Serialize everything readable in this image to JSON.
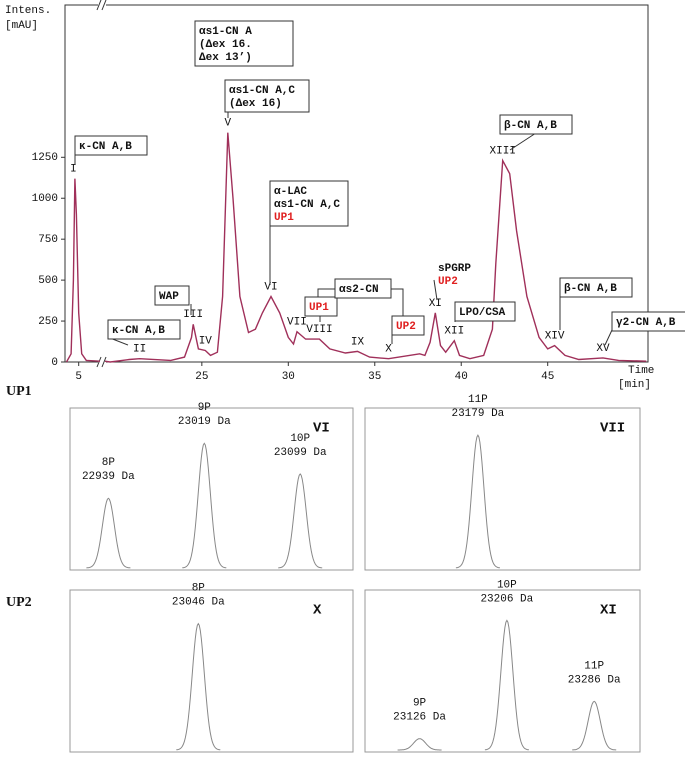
{
  "rows": [
    "UP1",
    "UP2"
  ],
  "chart_data": [
    {
      "type": "line",
      "y_label": "Intens.",
      "y_unit": "[mAU]",
      "x_label": "Time",
      "x_unit": "[min]",
      "xlim": [
        4.1,
        50.8
      ],
      "x_break": [
        6.4,
        19.4
      ],
      "xticks": [
        5,
        25,
        30,
        35,
        40,
        45
      ],
      "ylim": [
        0,
        2180
      ],
      "yticks": [
        0,
        250,
        500,
        750,
        1000,
        1250
      ],
      "x": [
        4.2,
        4.5,
        4.65,
        4.75,
        4.85,
        5.0,
        5.2,
        5.5,
        6.4,
        13,
        19.4,
        19.7,
        20.8,
        21.4,
        23.2,
        24.0,
        24.4,
        24.5,
        24.8,
        25.2,
        25.5,
        25.9,
        26.2,
        26.5,
        26.8,
        27.2,
        27.7,
        28.1,
        28.5,
        29.0,
        29.5,
        30.0,
        30.3,
        30.5,
        31.0,
        31.8,
        32.4,
        33.3,
        34.0,
        34.7,
        35.8,
        37.6,
        37.9,
        38.2,
        38.5,
        38.8,
        39.1,
        39.6,
        39.9,
        40.5,
        41.3,
        41.8,
        42.0,
        42.4,
        42.8,
        43.2,
        43.8,
        44.5,
        45.0,
        45.4,
        46.0,
        46.8,
        48.2,
        49.1,
        50.7
      ],
      "series": [
        {
          "color": "#a0305a",
          "values": [
            0,
            50,
            500,
            1120,
            900,
            300,
            50,
            10,
            5,
            null,
            5,
            0,
            15,
            20,
            10,
            30,
            150,
            230,
            80,
            70,
            40,
            60,
            400,
            1400,
            1000,
            400,
            180,
            200,
            300,
            400,
            300,
            150,
            110,
            185,
            140,
            140,
            80,
            55,
            65,
            30,
            20,
            50,
            40,
            120,
            300,
            100,
            60,
            130,
            40,
            20,
            40,
            200,
            600,
            1230,
            1150,
            800,
            400,
            150,
            80,
            100,
            40,
            15,
            25,
            10,
            5
          ]
        }
      ],
      "peak_labels": [
        {
          "text": "I",
          "x": 4.65,
          "y": 1120
        },
        {
          "text": "II",
          "x": 21.4,
          "y": 20
        },
        {
          "text": "III",
          "x": 24.5,
          "y": 230
        },
        {
          "text": "IV",
          "x": 25.2,
          "y": 70
        },
        {
          "text": "V",
          "x": 26.5,
          "y": 1400
        },
        {
          "text": "VI",
          "x": 29.0,
          "y": 400
        },
        {
          "text": "VII",
          "x": 30.5,
          "y": 185
        },
        {
          "text": "VIII",
          "x": 31.8,
          "y": 140
        },
        {
          "text": "IX",
          "x": 34.0,
          "y": 65
        },
        {
          "text": "X",
          "x": 35.8,
          "y": 20
        },
        {
          "text": "XI",
          "x": 38.5,
          "y": 300
        },
        {
          "text": "XII",
          "x": 39.6,
          "y": 130
        },
        {
          "text": "XIII",
          "x": 42.4,
          "y": 1230
        },
        {
          "text": "XIV",
          "x": 45.4,
          "y": 100
        },
        {
          "text": "XV",
          "x": 48.2,
          "y": 25
        }
      ],
      "highlight_color": "#e02020",
      "annotations": [
        {
          "lines": [
            {
              "text": "κ-CN A,B"
            }
          ]
        },
        {
          "lines": [
            {
              "text": "κ-CN A,B"
            }
          ]
        },
        {
          "lines": [
            {
              "text": "αs1-CN A"
            },
            {
              "text": "(Δex 16."
            },
            {
              "text": "Δex 13’)"
            }
          ]
        },
        {
          "lines": [
            {
              "text": "αs1-CN A,C"
            },
            {
              "text": "(Δex 16)"
            }
          ]
        },
        {
          "lines": [
            {
              "text": "WAP"
            }
          ]
        },
        {
          "lines": [
            {
              "text": "α-LAC"
            },
            {
              "text": "αs1-CN A,C"
            },
            {
              "text": "UP1",
              "highlight": true
            }
          ]
        },
        {
          "lines": [
            {
              "text": "UP1",
              "highlight": true
            }
          ]
        },
        {
          "lines": [
            {
              "text": "αs2-CN"
            }
          ]
        },
        {
          "lines": [
            {
              "text": "UP2",
              "highlight": true
            }
          ]
        },
        {
          "lines": [
            {
              "text": "sPGRP"
            },
            {
              "text": "UP2",
              "highlight": true
            }
          ]
        },
        {
          "lines": [
            {
              "text": "LPO/CSA"
            }
          ]
        },
        {
          "lines": [
            {
              "text": "β-CN A,B"
            }
          ]
        },
        {
          "lines": [
            {
              "text": "β-CN A,B"
            }
          ]
        },
        {
          "lines": [
            {
              "text": "γ2-CN A,B"
            }
          ]
        }
      ]
    },
    {
      "type": "spectrum",
      "label": "VI",
      "xlim": [
        22907,
        23143
      ],
      "ylim": [
        0,
        100
      ],
      "peaks": [
        {
          "name": "8P",
          "mass": 22939,
          "mass_label": "22939 Da",
          "height": 43
        },
        {
          "name": "9P",
          "mass": 23019,
          "mass_label": "23019 Da",
          "height": 77
        },
        {
          "name": "10P",
          "mass": 23099,
          "mass_label": "23099 Da",
          "height": 58
        }
      ]
    },
    {
      "type": "spectrum",
      "label": "VII",
      "xlim": [
        23085,
        23314
      ],
      "ylim": [
        0,
        100
      ],
      "peaks": [
        {
          "name": "11P",
          "mass": 23179,
          "mass_label": "23179 Da",
          "height": 82
        }
      ]
    },
    {
      "type": "spectrum",
      "label": "X",
      "xlim": [
        22939,
        23175
      ],
      "ylim": [
        0,
        100
      ],
      "peaks": [
        {
          "name": "8P",
          "mass": 23046,
          "mass_label": "23046 Da",
          "height": 78
        }
      ]
    },
    {
      "type": "spectrum",
      "label": "XI",
      "xlim": [
        23076,
        23328
      ],
      "ylim": [
        0,
        100
      ],
      "peaks": [
        {
          "name": "9P",
          "mass": 23126,
          "mass_label": "23126 Da",
          "height": 7
        },
        {
          "name": "10P",
          "mass": 23206,
          "mass_label": "23206 Da",
          "height": 80
        },
        {
          "name": "11P",
          "mass": 23286,
          "mass_label": "23286 Da",
          "height": 30
        }
      ]
    }
  ]
}
